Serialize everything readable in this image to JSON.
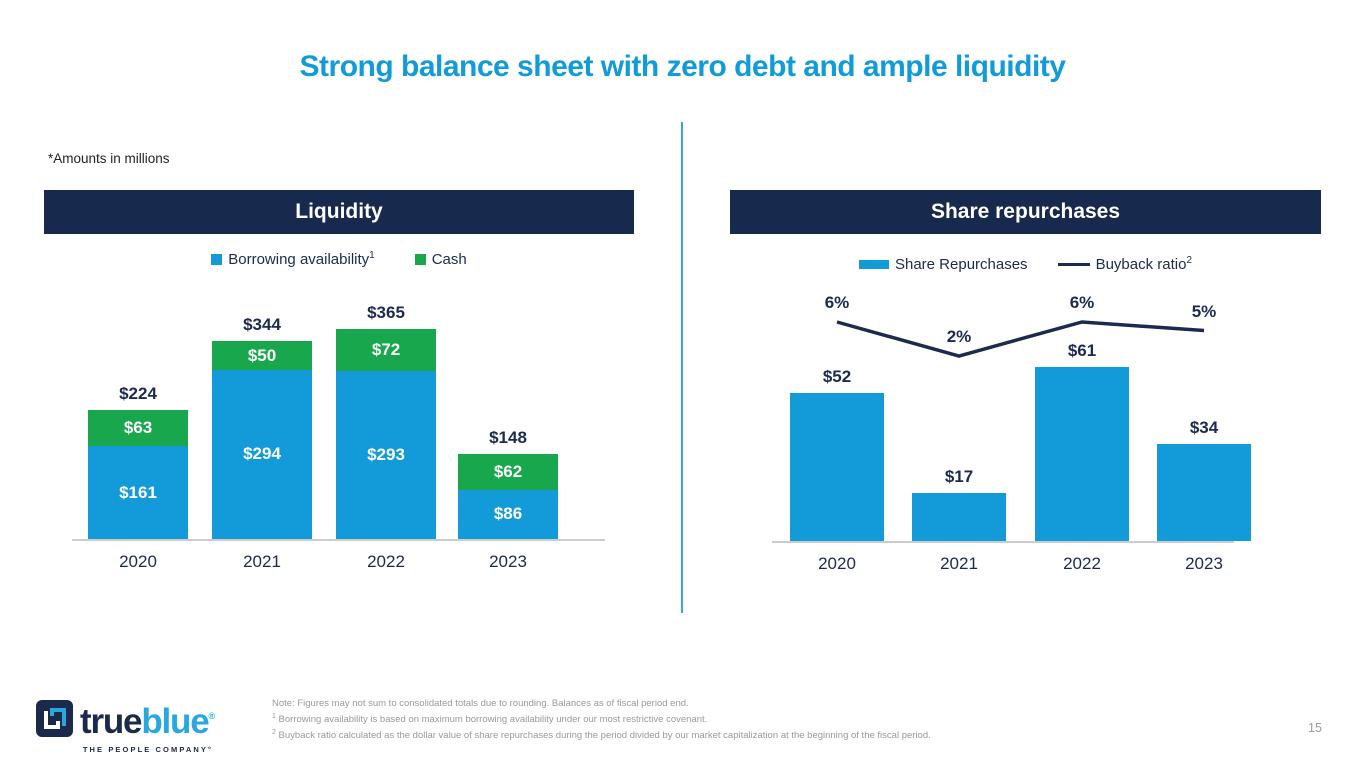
{
  "slide": {
    "title": "Strong balance sheet with zero debt and ample liquidity",
    "amounts_note": "*Amounts in millions",
    "page_number": "15"
  },
  "colors": {
    "title_blue": "#119bd9",
    "bar_blue": "#129BD8",
    "cash_green": "#18A74C",
    "navy": "#18294e",
    "line_navy": "#1B2A4E",
    "divider_blue": "#2fa9dc",
    "axis_gray": "#cccccc",
    "note_gray": "#999999",
    "logo_light_blue": "#29a8e0"
  },
  "chart_data": [
    {
      "type": "bar",
      "variant": "stacked",
      "title": "Liquidity",
      "categories": [
        "2020",
        "2021",
        "2022",
        "2023"
      ],
      "series": [
        {
          "name": "Borrowing availability",
          "sup": "1",
          "color": "#129BD8",
          "values": [
            161,
            294,
            293,
            86
          ],
          "labels": [
            "$161",
            "$294",
            "$293",
            "$86"
          ]
        },
        {
          "name": "Cash",
          "sup": "",
          "color": "#18A74C",
          "values": [
            63,
            50,
            72,
            62
          ],
          "labels": [
            "$63",
            "$50",
            "$72",
            "$62"
          ]
        }
      ],
      "totals": [
        224,
        344,
        365,
        148
      ],
      "total_labels": [
        "$224",
        "$344",
        "$365",
        "$148"
      ],
      "units": "$ millions",
      "grid": false,
      "legend_position": "top",
      "ylim": [
        0,
        380
      ]
    },
    {
      "type": "bar+line",
      "title": "Share repurchases",
      "categories": [
        "2020",
        "2021",
        "2022",
        "2023"
      ],
      "series": [
        {
          "name": "Share Repurchases",
          "kind": "bar",
          "sup": "",
          "color": "#129BD8",
          "values": [
            52,
            17,
            61,
            34
          ],
          "labels": [
            "$52",
            "$17",
            "$61",
            "$34"
          ]
        },
        {
          "name": "Buyback ratio",
          "kind": "line",
          "sup": "2",
          "color": "#1B2A4E",
          "values": [
            6,
            2,
            6,
            5
          ],
          "labels": [
            "6%",
            "2%",
            "6%",
            "5%"
          ],
          "unit": "%"
        }
      ],
      "units": "$ millions / %",
      "grid": false,
      "legend_position": "top"
    }
  ],
  "logo": {
    "word_true": "true",
    "word_blue": "blue",
    "registered": "®",
    "tagline": "THE PEOPLE COMPANY°"
  },
  "footer": {
    "notes": [
      {
        "sup": "",
        "text": "Note: Figures may not sum to consolidated totals due to rounding. Balances as of fiscal period end."
      },
      {
        "sup": "1",
        "text": " Borrowing availability is based on maximum borrowing availability under our most restrictive covenant."
      },
      {
        "sup": "2",
        "text": " Buyback ratio calculated as the dollar value of share repurchases during the period divided by our market capitalization at the beginning of the fiscal period."
      }
    ]
  }
}
